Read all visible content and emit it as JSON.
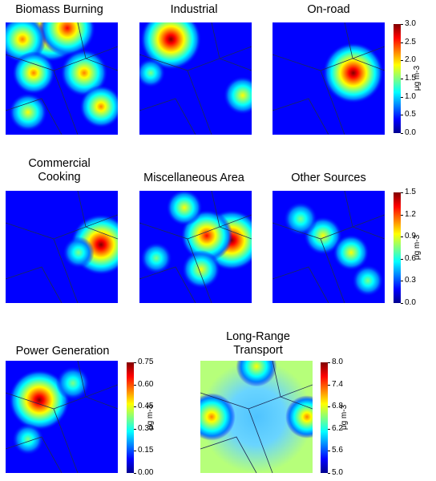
{
  "chart_data": [
    {
      "type": "heatmap",
      "title": "Biomass Burning",
      "colorbar_group": "row1",
      "hotspots": [
        [
          0.4,
          0.08,
          1.0
        ],
        [
          0.55,
          0.05,
          0.9
        ],
        [
          0.15,
          0.15,
          0.7
        ],
        [
          0.25,
          0.45,
          0.6
        ],
        [
          0.7,
          0.45,
          0.7
        ],
        [
          0.85,
          0.75,
          0.6
        ],
        [
          0.2,
          0.8,
          0.5
        ]
      ]
    },
    {
      "type": "heatmap",
      "title": "Industrial",
      "colorbar_group": "row1",
      "hotspots": [
        [
          0.28,
          0.15,
          1.0
        ],
        [
          0.92,
          0.65,
          0.5
        ],
        [
          0.1,
          0.45,
          0.3
        ]
      ]
    },
    {
      "type": "heatmap",
      "title": "On-road",
      "colorbar_group": "row1",
      "hotspots": [
        [
          0.72,
          0.45,
          1.0
        ]
      ]
    },
    {
      "type": "heatmap",
      "title": "Commercial Cooking",
      "title_lines": [
        "Commercial",
        "Cooking"
      ],
      "colorbar_group": "row2",
      "hotspots": [
        [
          0.85,
          0.48,
          1.0
        ],
        [
          0.65,
          0.55,
          0.35
        ]
      ]
    },
    {
      "type": "heatmap",
      "title": "Miscellaneous Area",
      "colorbar_group": "row2",
      "hotspots": [
        [
          0.82,
          0.44,
          1.0
        ],
        [
          0.6,
          0.4,
          0.8
        ],
        [
          0.55,
          0.7,
          0.5
        ],
        [
          0.4,
          0.15,
          0.45
        ],
        [
          0.15,
          0.6,
          0.35
        ]
      ]
    },
    {
      "type": "heatmap",
      "title": "Other Sources",
      "colorbar_group": "row2",
      "hotspots": [
        [
          0.45,
          0.4,
          0.5
        ],
        [
          0.25,
          0.25,
          0.4
        ],
        [
          0.7,
          0.55,
          0.45
        ],
        [
          0.85,
          0.8,
          0.35
        ]
      ]
    },
    {
      "type": "heatmap",
      "title": "Power Generation",
      "colorbar_group": "power",
      "hotspots": [
        [
          0.3,
          0.35,
          1.0
        ],
        [
          0.6,
          0.2,
          0.4
        ],
        [
          0.2,
          0.7,
          0.35
        ]
      ]
    },
    {
      "type": "heatmap",
      "title": "Long-Range Transport",
      "title_lines": [
        "Long-Range",
        "Transport"
      ],
      "colorbar_group": "lrt",
      "hotspots": [
        [
          0.1,
          0.5,
          0.7
        ],
        [
          0.95,
          0.5,
          0.6
        ],
        [
          0.5,
          0.05,
          0.55
        ]
      ]
    }
  ],
  "colorbars": {
    "row1": {
      "range": [
        0,
        3
      ],
      "ticks": [
        "0.0",
        "0.5",
        "1.0",
        "1.5",
        "2.0",
        "2.5",
        "3.0"
      ],
      "unit": "μg m-3"
    },
    "row2": {
      "range": [
        0,
        1.5
      ],
      "ticks": [
        "0.0",
        "0.3",
        "0.6",
        "0.9",
        "1.2",
        "1.5"
      ],
      "unit": "μg m-3"
    },
    "power": {
      "range": [
        0,
        0.75
      ],
      "ticks": [
        "0.00",
        "0.15",
        "0.30",
        "0.45",
        "0.60",
        "0.75"
      ],
      "unit": "μg m-3"
    },
    "lrt": {
      "range": [
        5,
        8
      ],
      "ticks": [
        "5.0",
        "5.6",
        "6.2",
        "6.8",
        "7.4",
        "8.0"
      ],
      "unit": "μg m-3"
    }
  },
  "colormap": [
    "#00008f",
    "#0000ff",
    "#0080ff",
    "#00ffff",
    "#80ff80",
    "#ffff00",
    "#ff8000",
    "#ff0000",
    "#800000"
  ]
}
